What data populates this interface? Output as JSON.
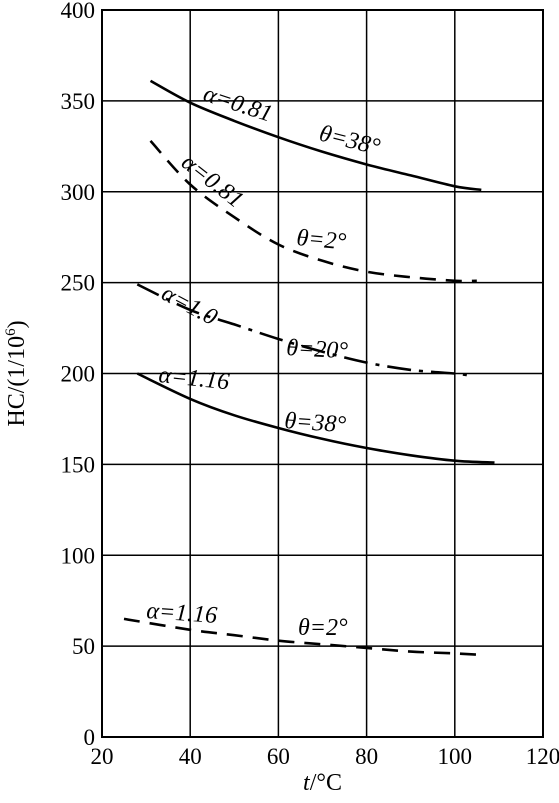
{
  "chart_data": {
    "type": "line",
    "title": "",
    "xlabel_italic": "t",
    "xlabel_unit": "/°C",
    "ylabel_main": "HC/(1/10",
    "ylabel_sup": "6",
    "ylabel_close": ")",
    "xlim": [
      20,
      120
    ],
    "ylim": [
      0,
      400
    ],
    "xticks": [
      20,
      40,
      60,
      80,
      100,
      120
    ],
    "yticks": [
      0,
      50,
      100,
      150,
      200,
      250,
      300,
      350,
      400
    ],
    "grid": true,
    "series": [
      {
        "label_alpha": "α=0.81",
        "label_theta": "θ=38°",
        "style": "solid",
        "x": [
          31,
          40,
          50,
          60,
          70,
          80,
          90,
          100,
          106
        ],
        "y": [
          361,
          349,
          339,
          330,
          322,
          315,
          309,
          303,
          301
        ]
      },
      {
        "label_alpha": "α=0.81",
        "label_theta": "θ=2°",
        "style": "dashed",
        "x": [
          31,
          40,
          50,
          60,
          70,
          80,
          90,
          100,
          105
        ],
        "y": [
          328,
          304,
          286,
          271,
          262,
          256,
          253,
          251,
          251
        ]
      },
      {
        "label_alpha": "α=1.0",
        "label_theta": "θ=20°",
        "style": "dashdot",
        "x": [
          28,
          40,
          50,
          60,
          70,
          80,
          90,
          100,
          103
        ],
        "y": [
          249,
          235,
          227,
          219,
          212,
          206,
          202,
          200,
          199
        ]
      },
      {
        "label_alpha": "α=1.16",
        "label_theta": "θ=38°",
        "style": "solid",
        "x": [
          28,
          40,
          50,
          60,
          70,
          80,
          90,
          100,
          109
        ],
        "y": [
          200,
          186,
          177,
          170,
          164,
          159,
          155,
          152,
          151
        ]
      },
      {
        "label_alpha": "α=1.16",
        "label_theta": "θ=2°",
        "style": "dashed",
        "x": [
          25,
          40,
          50,
          60,
          70,
          80,
          90,
          100,
          107
        ],
        "y": [
          65,
          59,
          56,
          53,
          51,
          49,
          47,
          46,
          45
        ]
      }
    ]
  }
}
